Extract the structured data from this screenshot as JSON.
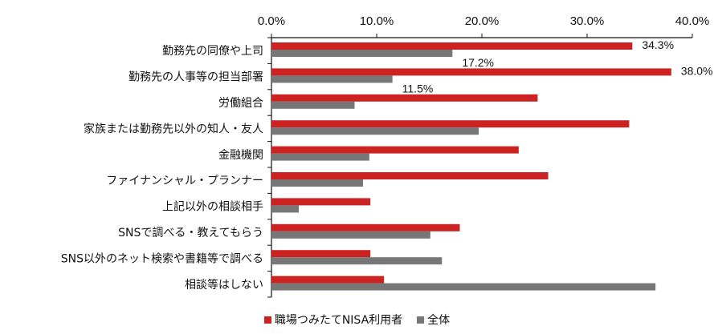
{
  "chart_data": {
    "type": "bar",
    "orientation": "horizontal",
    "categories": [
      "勤務先の同僚や上司",
      "勤務先の人事等の担当部署",
      "労働組合",
      "家族または勤務先以外の知人・友人",
      "金融機関",
      "ファイナンシャル・プランナー",
      "上記以外の相談相手",
      "SNSで調べる・教えてもらう",
      "SNS以外のネット検索や書籍等で調べる",
      "相談等はしない"
    ],
    "series": [
      {
        "name": "職場つみたてNISA利用者",
        "color": "#cc2222",
        "values": [
          34.3,
          38.0,
          25.3,
          34.0,
          23.5,
          26.3,
          9.4,
          17.9,
          9.4,
          10.7
        ],
        "labels": [
          "34.3%",
          "38.0%",
          null,
          null,
          null,
          null,
          null,
          null,
          null,
          null
        ]
      },
      {
        "name": "全体",
        "color": "#777777",
        "values": [
          17.2,
          11.5,
          7.9,
          19.7,
          9.3,
          8.7,
          2.6,
          15.1,
          16.2,
          36.5
        ],
        "labels": [
          "17.2%",
          "11.5%",
          null,
          null,
          null,
          null,
          null,
          null,
          null,
          null
        ]
      }
    ],
    "xlim": [
      0,
      40
    ],
    "xticks": [
      "0.0%",
      "10.0%",
      "20.0%",
      "30.0%",
      "40.0%"
    ],
    "axis_position": "top",
    "grid": false,
    "legend": "bottom"
  }
}
